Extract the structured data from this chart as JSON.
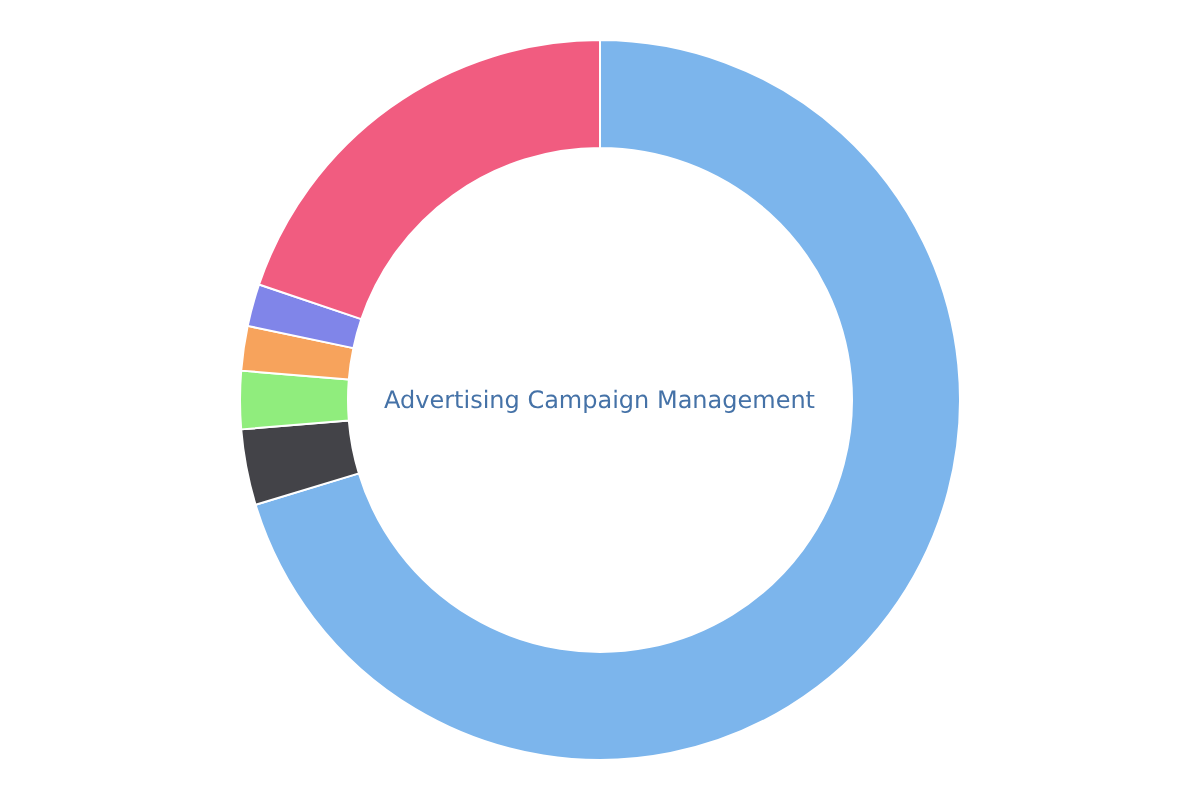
{
  "chart_data": {
    "type": "donut",
    "categories": [
      null,
      null,
      null,
      null,
      null,
      null
    ],
    "values": [
      70.3,
      3.4,
      2.6,
      2.0,
      1.9,
      19.8
    ],
    "colors": [
      "#7cb5ec",
      "#434348",
      "#90ed7d",
      "#f7a35c",
      "#8085e9",
      "#f15c80"
    ],
    "annotations": [
      "Advertising Campaign Management"
    ],
    "legend": false
  }
}
